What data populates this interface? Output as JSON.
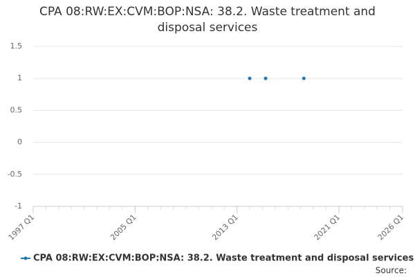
{
  "chart_data": {
    "type": "line",
    "title": "CPA 08:RW:EX:CVM:BOP:NSA: 38.2. Waste treatment and disposal services",
    "x": [
      "2014 Q1",
      "2015 Q2",
      "2018 Q2"
    ],
    "series": [
      {
        "name": "CPA 08:RW:EX:CVM:BOP:NSA: 38.2. Waste treatment and disposal services",
        "color": "#1f78b4",
        "values": [
          1,
          1,
          1
        ]
      }
    ],
    "xlim": [
      "1997 Q1",
      "2026 Q1"
    ],
    "xticks": [
      "1997 Q1",
      "2005 Q1",
      "2013 Q1",
      "2021 Q1",
      "2026 Q1"
    ],
    "ylim": [
      -1,
      1.5
    ],
    "yticks": [
      -1,
      -0.5,
      0,
      0.5,
      1,
      1.5
    ],
    "grid": true,
    "legend": "bottom",
    "source": "Source:"
  }
}
